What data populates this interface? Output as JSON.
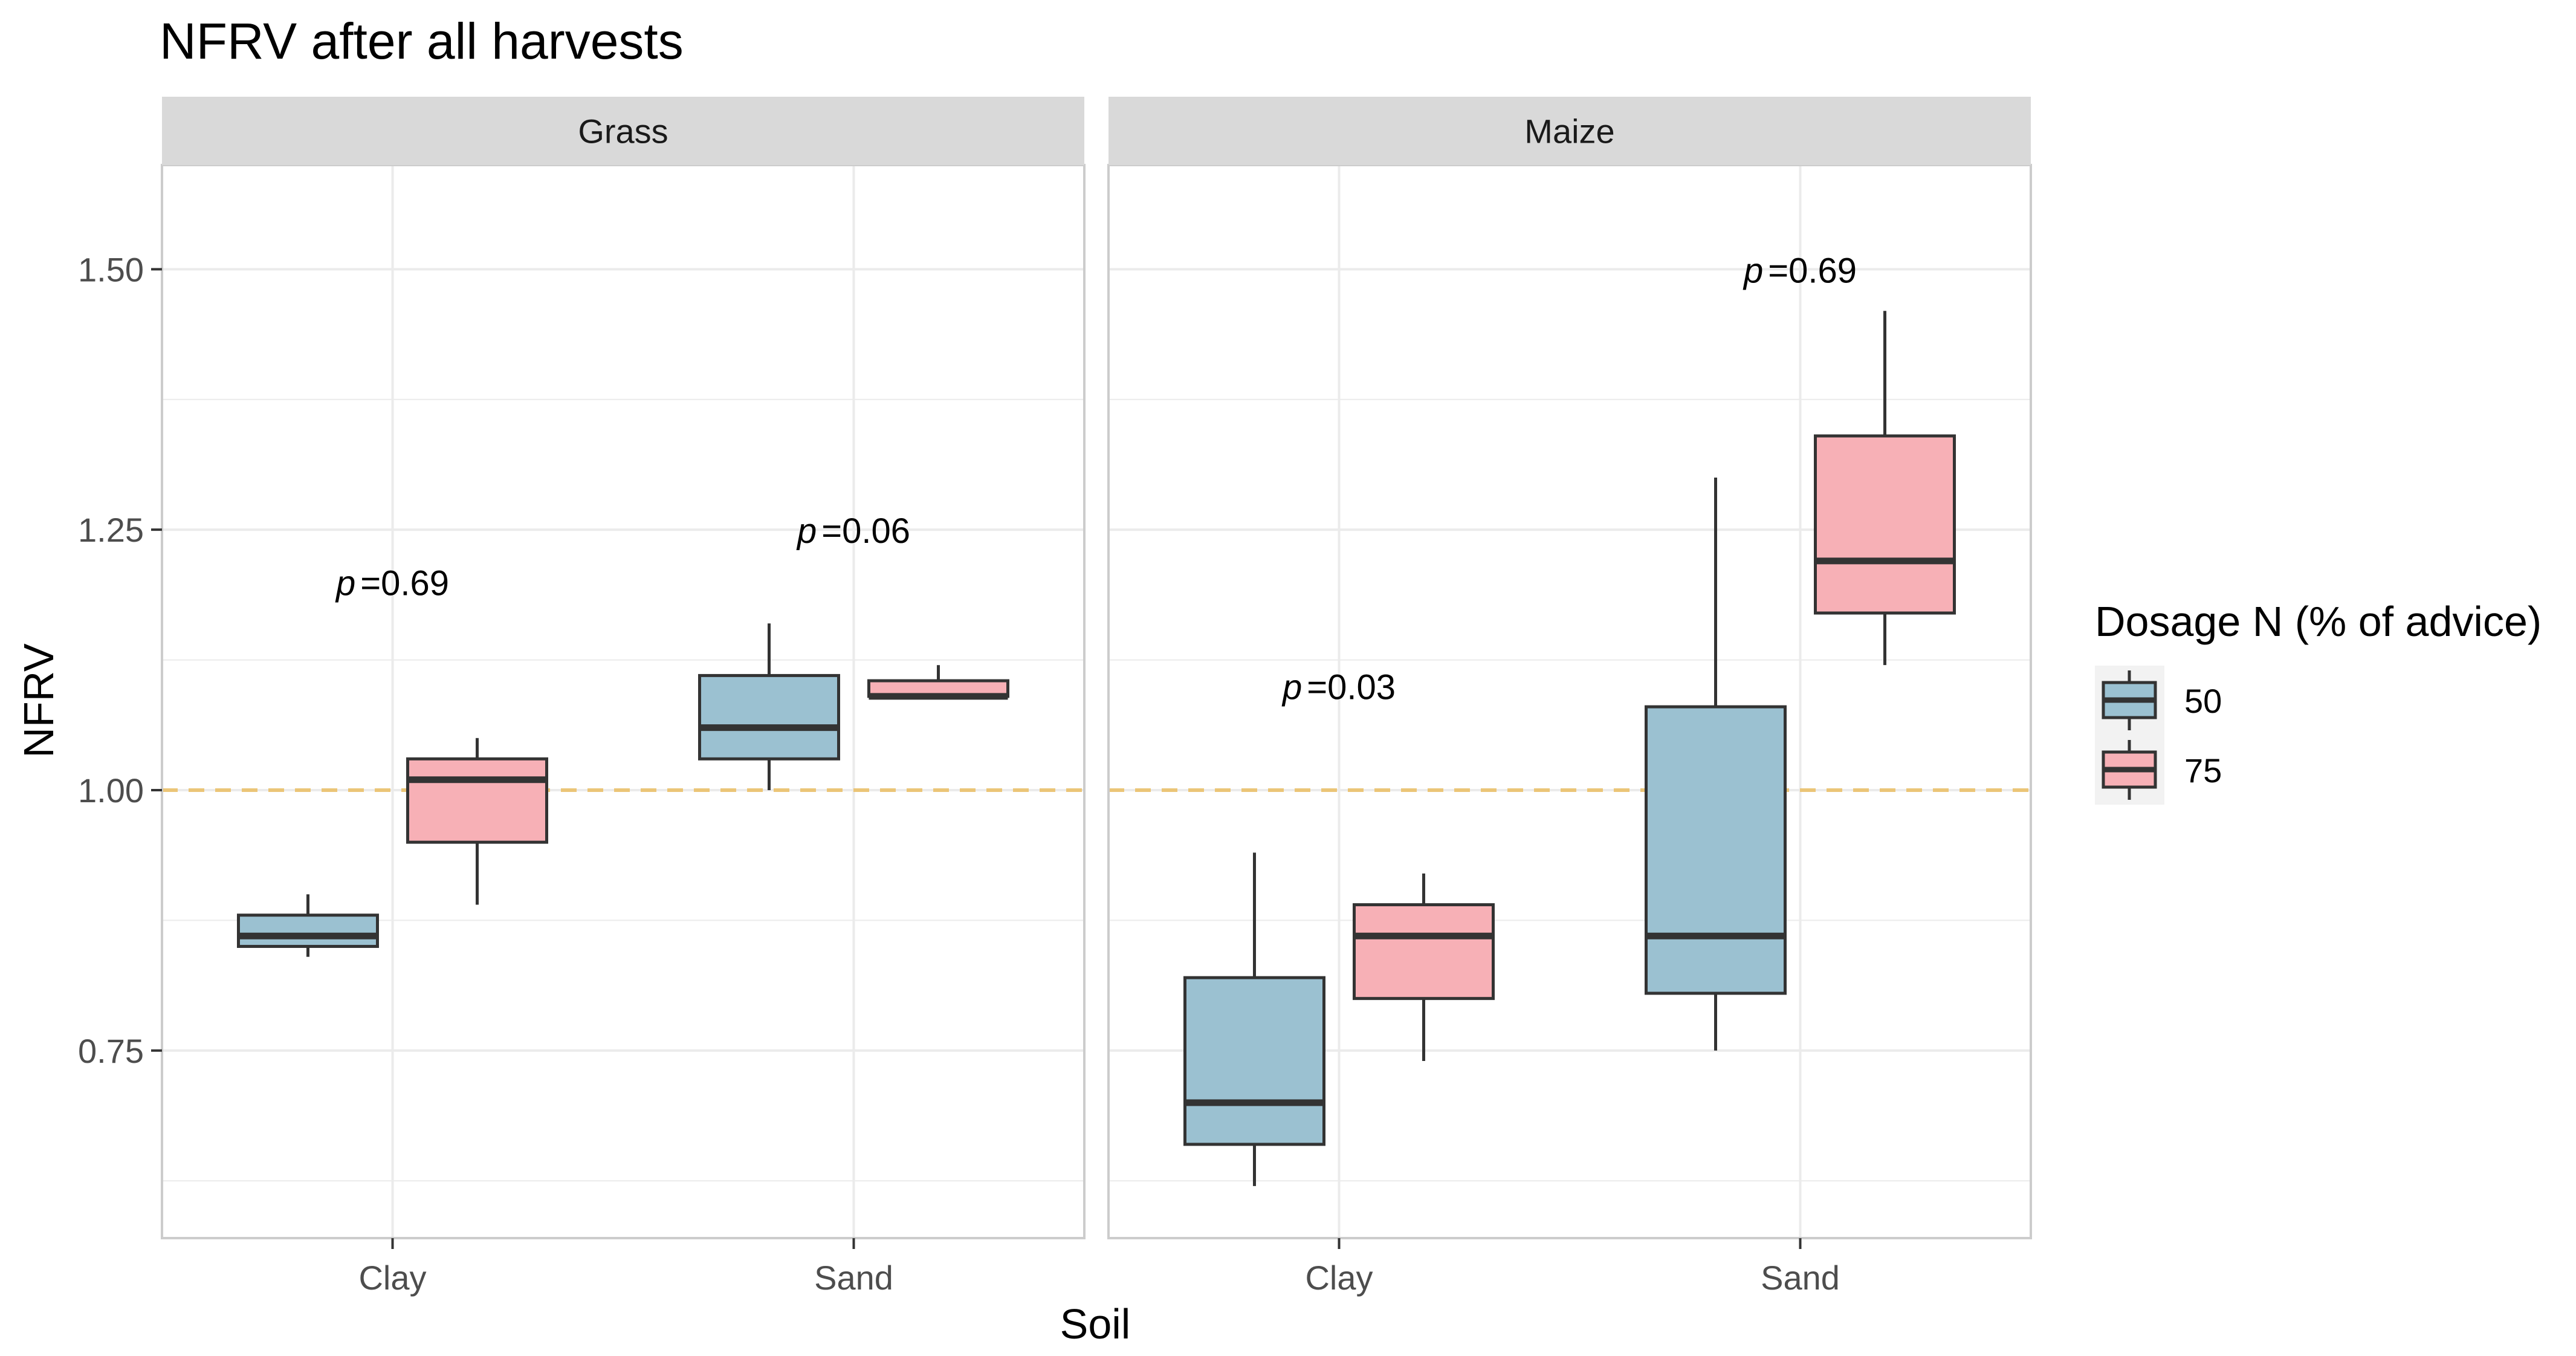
{
  "chart_data": {
    "type": "boxplot",
    "title": "NFRV after all harvests",
    "xlabel": "Soil",
    "ylabel": "NFRV",
    "ylim": [
      0.57,
      1.6
    ],
    "yticks": [
      0.75,
      1.0,
      1.25,
      1.5
    ],
    "ytick_labels": [
      "0.75",
      "1.00",
      "1.25",
      "1.50"
    ],
    "reference_line": {
      "y": 1.0,
      "style": "dashed",
      "color": "#EBC577"
    },
    "categories": [
      "Clay",
      "Sand"
    ],
    "legend": {
      "title": "Dosage N (% of advice)",
      "position": "right",
      "entries": [
        {
          "name": "50",
          "color": "#9BC1D1"
        },
        {
          "name": "75",
          "color": "#F7B0B6"
        }
      ]
    },
    "panels": [
      {
        "name": "Grass",
        "annotations": [
          {
            "category": "Clay",
            "p_label": "p",
            "p_value": "=0.69",
            "y": 1.2
          },
          {
            "category": "Sand",
            "p_label": "p",
            "p_value": "=0.06",
            "y": 1.25
          }
        ],
        "boxes": [
          {
            "category": "Clay",
            "series": "50",
            "min": 0.84,
            "q1": 0.85,
            "median": 0.86,
            "q3": 0.88,
            "max": 0.9
          },
          {
            "category": "Clay",
            "series": "75",
            "min": 0.89,
            "q1": 0.95,
            "median": 1.01,
            "q3": 1.03,
            "max": 1.05
          },
          {
            "category": "Sand",
            "series": "50",
            "min": 1.0,
            "q1": 1.03,
            "median": 1.06,
            "q3": 1.11,
            "max": 1.16
          },
          {
            "category": "Sand",
            "series": "75",
            "min": 1.09,
            "q1": 1.09,
            "median": 1.09,
            "q3": 1.105,
            "max": 1.12
          }
        ]
      },
      {
        "name": "Maize",
        "annotations": [
          {
            "category": "Clay",
            "p_label": "p",
            "p_value": "=0.03",
            "y": 1.1
          },
          {
            "category": "Sand",
            "p_label": "p",
            "p_value": "=0.69",
            "y": 1.5
          }
        ],
        "boxes": [
          {
            "category": "Clay",
            "series": "50",
            "min": 0.62,
            "q1": 0.66,
            "median": 0.7,
            "q3": 0.82,
            "max": 0.94
          },
          {
            "category": "Clay",
            "series": "75",
            "min": 0.74,
            "q1": 0.8,
            "median": 0.86,
            "q3": 0.89,
            "max": 0.92
          },
          {
            "category": "Sand",
            "series": "50",
            "min": 0.75,
            "q1": 0.805,
            "median": 0.86,
            "q3": 1.08,
            "max": 1.3
          },
          {
            "category": "Sand",
            "series": "75",
            "min": 1.12,
            "q1": 1.17,
            "median": 1.22,
            "q3": 1.34,
            "max": 1.46
          }
        ]
      }
    ]
  }
}
